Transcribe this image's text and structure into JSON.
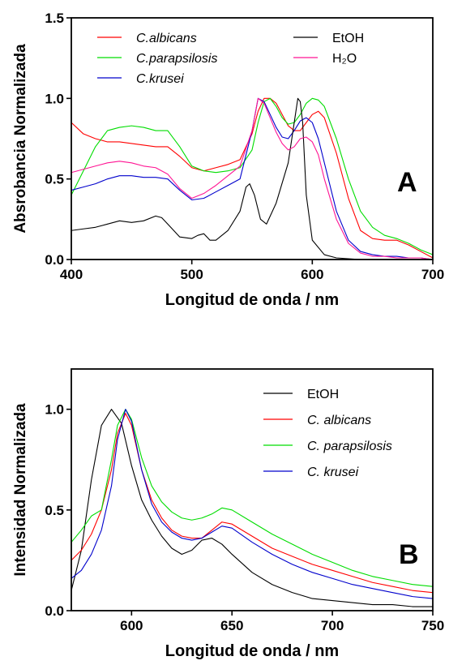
{
  "chart_data": [
    {
      "type": "line",
      "panel_label": "A",
      "xlabel": "Longitud de onda / nm",
      "ylabel": "Absrobancia Normalizada",
      "xlim": [
        400,
        700
      ],
      "ylim": [
        0.0,
        1.5
      ],
      "xticks": [
        400,
        500,
        600,
        700
      ],
      "xtick_labels": [
        "400",
        "500",
        "600",
        "700"
      ],
      "yticks": [
        0.0,
        0.5,
        1.0,
        1.5
      ],
      "ytick_labels": [
        "0.0",
        "0.5",
        "1.0",
        "1.5"
      ],
      "grid": false,
      "legend_placement": "top",
      "series": [
        {
          "name": "C.albicans",
          "italic": true,
          "color": "#ff0000",
          "x": [
            400,
            410,
            420,
            430,
            440,
            450,
            460,
            470,
            480,
            490,
            500,
            510,
            520,
            530,
            540,
            550,
            555,
            560,
            565,
            570,
            575,
            580,
            585,
            590,
            595,
            600,
            605,
            610,
            620,
            630,
            640,
            650,
            660,
            670,
            680,
            690,
            700
          ],
          "y": [
            0.85,
            0.78,
            0.75,
            0.73,
            0.73,
            0.72,
            0.71,
            0.7,
            0.7,
            0.64,
            0.57,
            0.55,
            0.57,
            0.59,
            0.62,
            0.78,
            0.92,
            1.0,
            1.0,
            0.97,
            0.9,
            0.83,
            0.8,
            0.8,
            0.85,
            0.9,
            0.92,
            0.88,
            0.66,
            0.38,
            0.18,
            0.13,
            0.12,
            0.12,
            0.09,
            0.05,
            0.01
          ]
        },
        {
          "name": "C.parapsilosis",
          "italic": true,
          "color": "#00dd00",
          "x": [
            400,
            410,
            420,
            430,
            440,
            450,
            460,
            470,
            480,
            490,
            500,
            510,
            520,
            530,
            540,
            550,
            555,
            560,
            565,
            570,
            575,
            580,
            585,
            590,
            595,
            600,
            605,
            610,
            620,
            630,
            640,
            650,
            660,
            670,
            680,
            690,
            700
          ],
          "y": [
            0.4,
            0.55,
            0.7,
            0.8,
            0.82,
            0.83,
            0.82,
            0.8,
            0.8,
            0.7,
            0.58,
            0.55,
            0.54,
            0.55,
            0.57,
            0.68,
            0.85,
            0.98,
            1.0,
            0.95,
            0.88,
            0.84,
            0.85,
            0.9,
            0.97,
            1.0,
            0.99,
            0.95,
            0.75,
            0.5,
            0.3,
            0.2,
            0.15,
            0.13,
            0.1,
            0.06,
            0.03
          ]
        },
        {
          "name": "C.krusei",
          "italic": true,
          "color": "#0000cc",
          "x": [
            400,
            410,
            420,
            430,
            440,
            450,
            460,
            470,
            480,
            490,
            500,
            510,
            520,
            530,
            540,
            550,
            555,
            560,
            565,
            570,
            575,
            580,
            585,
            590,
            595,
            600,
            605,
            610,
            620,
            630,
            640,
            650,
            660,
            670,
            680,
            690,
            700
          ],
          "y": [
            0.43,
            0.45,
            0.47,
            0.5,
            0.52,
            0.52,
            0.51,
            0.51,
            0.5,
            0.43,
            0.37,
            0.38,
            0.42,
            0.46,
            0.5,
            0.8,
            1.0,
            0.98,
            0.9,
            0.82,
            0.76,
            0.75,
            0.8,
            0.86,
            0.88,
            0.85,
            0.75,
            0.6,
            0.3,
            0.12,
            0.05,
            0.03,
            0.02,
            0.02,
            0.01,
            0.01,
            0.0
          ]
        },
        {
          "name": "EtOH",
          "italic": false,
          "color": "#000000",
          "x": [
            400,
            410,
            420,
            430,
            440,
            450,
            460,
            470,
            475,
            480,
            490,
            500,
            505,
            510,
            515,
            520,
            530,
            540,
            545,
            548,
            552,
            557,
            562,
            570,
            580,
            585,
            588,
            590,
            592,
            595,
            600,
            610,
            620,
            640,
            660,
            680,
            700
          ],
          "y": [
            0.18,
            0.19,
            0.2,
            0.22,
            0.24,
            0.23,
            0.24,
            0.27,
            0.26,
            0.22,
            0.14,
            0.13,
            0.15,
            0.16,
            0.12,
            0.12,
            0.18,
            0.3,
            0.45,
            0.47,
            0.4,
            0.25,
            0.22,
            0.35,
            0.6,
            0.85,
            1.0,
            0.98,
            0.85,
            0.4,
            0.12,
            0.03,
            0.01,
            0.0,
            0.0,
            0.0,
            0.0
          ]
        },
        {
          "name": "H₂O",
          "italic": false,
          "color": "#ff1493",
          "x": [
            400,
            410,
            420,
            430,
            440,
            450,
            460,
            470,
            480,
            490,
            500,
            510,
            520,
            530,
            540,
            550,
            555,
            560,
            565,
            570,
            575,
            580,
            585,
            590,
            595,
            600,
            605,
            610,
            620,
            630,
            640,
            650,
            660,
            670,
            680,
            690,
            700
          ],
          "y": [
            0.54,
            0.56,
            0.58,
            0.6,
            0.61,
            0.6,
            0.58,
            0.57,
            0.53,
            0.44,
            0.38,
            0.41,
            0.46,
            0.52,
            0.58,
            0.8,
            1.0,
            0.97,
            0.88,
            0.79,
            0.72,
            0.68,
            0.7,
            0.75,
            0.76,
            0.73,
            0.65,
            0.5,
            0.25,
            0.1,
            0.04,
            0.02,
            0.02,
            0.01,
            0.01,
            0.01,
            0.0
          ]
        }
      ]
    },
    {
      "type": "line",
      "panel_label": "B",
      "xlabel": "Longitud de onda / nm",
      "ylabel": "Intensidad Normalizada",
      "xlim": [
        570,
        750
      ],
      "ylim": [
        0.0,
        1.2
      ],
      "xticks": [
        600,
        650,
        700,
        750
      ],
      "xtick_labels": [
        "600",
        "650",
        "700",
        "750"
      ],
      "yticks": [
        0.0,
        0.5,
        1.0
      ],
      "ytick_labels": [
        "0.0",
        "0.5",
        "1.0"
      ],
      "grid": false,
      "legend_placement": "top-right",
      "series": [
        {
          "name": "EtOH",
          "italic": false,
          "color": "#000000",
          "x": [
            570,
            575,
            580,
            585,
            590,
            595,
            600,
            605,
            610,
            615,
            620,
            625,
            630,
            635,
            640,
            645,
            650,
            660,
            670,
            680,
            690,
            700,
            710,
            720,
            730,
            740,
            750
          ],
          "y": [
            0.1,
            0.3,
            0.65,
            0.92,
            1.0,
            0.93,
            0.72,
            0.55,
            0.45,
            0.37,
            0.31,
            0.28,
            0.3,
            0.35,
            0.36,
            0.33,
            0.28,
            0.19,
            0.13,
            0.09,
            0.06,
            0.05,
            0.04,
            0.03,
            0.03,
            0.02,
            0.02
          ]
        },
        {
          "name": "C. albicans",
          "italic": true,
          "color": "#ff0000",
          "x": [
            570,
            575,
            580,
            585,
            590,
            593,
            597,
            600,
            605,
            610,
            615,
            620,
            625,
            630,
            635,
            640,
            645,
            650,
            660,
            670,
            680,
            690,
            700,
            710,
            720,
            730,
            740,
            750
          ],
          "y": [
            0.25,
            0.3,
            0.38,
            0.5,
            0.7,
            0.88,
            0.98,
            0.92,
            0.7,
            0.55,
            0.46,
            0.4,
            0.37,
            0.36,
            0.36,
            0.4,
            0.44,
            0.43,
            0.37,
            0.31,
            0.27,
            0.23,
            0.2,
            0.17,
            0.14,
            0.12,
            0.1,
            0.09
          ]
        },
        {
          "name": "C. parapsilosis",
          "italic": true,
          "color": "#00dd00",
          "x": [
            570,
            575,
            580,
            585,
            590,
            593,
            597,
            600,
            605,
            610,
            615,
            620,
            625,
            630,
            635,
            640,
            645,
            650,
            660,
            670,
            680,
            690,
            700,
            710,
            720,
            730,
            740,
            750
          ],
          "y": [
            0.34,
            0.4,
            0.47,
            0.5,
            0.75,
            0.92,
            1.0,
            0.95,
            0.76,
            0.62,
            0.54,
            0.49,
            0.46,
            0.45,
            0.46,
            0.48,
            0.51,
            0.5,
            0.44,
            0.38,
            0.33,
            0.28,
            0.24,
            0.2,
            0.17,
            0.15,
            0.13,
            0.12
          ]
        },
        {
          "name": "C. krusei",
          "italic": true,
          "color": "#0000cc",
          "x": [
            570,
            575,
            580,
            585,
            590,
            593,
            597,
            600,
            605,
            610,
            615,
            620,
            625,
            630,
            635,
            640,
            645,
            650,
            660,
            670,
            680,
            690,
            700,
            710,
            720,
            730,
            740,
            750
          ],
          "y": [
            0.16,
            0.2,
            0.28,
            0.4,
            0.62,
            0.85,
            1.0,
            0.94,
            0.7,
            0.53,
            0.44,
            0.39,
            0.36,
            0.35,
            0.36,
            0.39,
            0.42,
            0.41,
            0.34,
            0.28,
            0.23,
            0.19,
            0.16,
            0.13,
            0.11,
            0.09,
            0.07,
            0.06
          ]
        }
      ]
    }
  ]
}
